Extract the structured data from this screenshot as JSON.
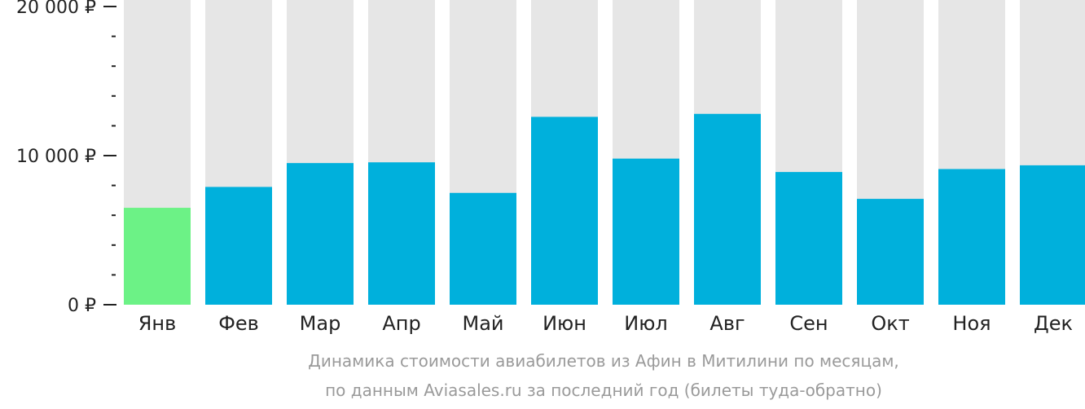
{
  "chart_data": {
    "type": "bar",
    "categories": [
      "Янв",
      "Фев",
      "Мар",
      "Апр",
      "Май",
      "Июн",
      "Июл",
      "Авг",
      "Сен",
      "Окт",
      "Ноя",
      "Дек"
    ],
    "values": [
      6500,
      7900,
      9500,
      9550,
      7500,
      12600,
      9800,
      12800,
      8900,
      7100,
      9100,
      9350
    ],
    "highlight_index": 0,
    "ylim": [
      0,
      20000
    ],
    "yticks": [
      {
        "value": 0,
        "label": "0 ₽"
      },
      {
        "value": 10000,
        "label": "10 000 ₽"
      },
      {
        "value": 20000,
        "label": "20 000 ₽"
      }
    ],
    "minor_tick_step": 2000,
    "colors": {
      "bar": "#00b0dc",
      "highlight": "#6cf286",
      "background_bar": "#e6e6e6",
      "axis": "#222222"
    },
    "caption": {
      "line1": "Динамика стоимости авиабилетов из Афин в Митилини по месяцам,",
      "line2": "по данным Aviasales.ru за последний год (билеты туда-обратно)"
    }
  }
}
